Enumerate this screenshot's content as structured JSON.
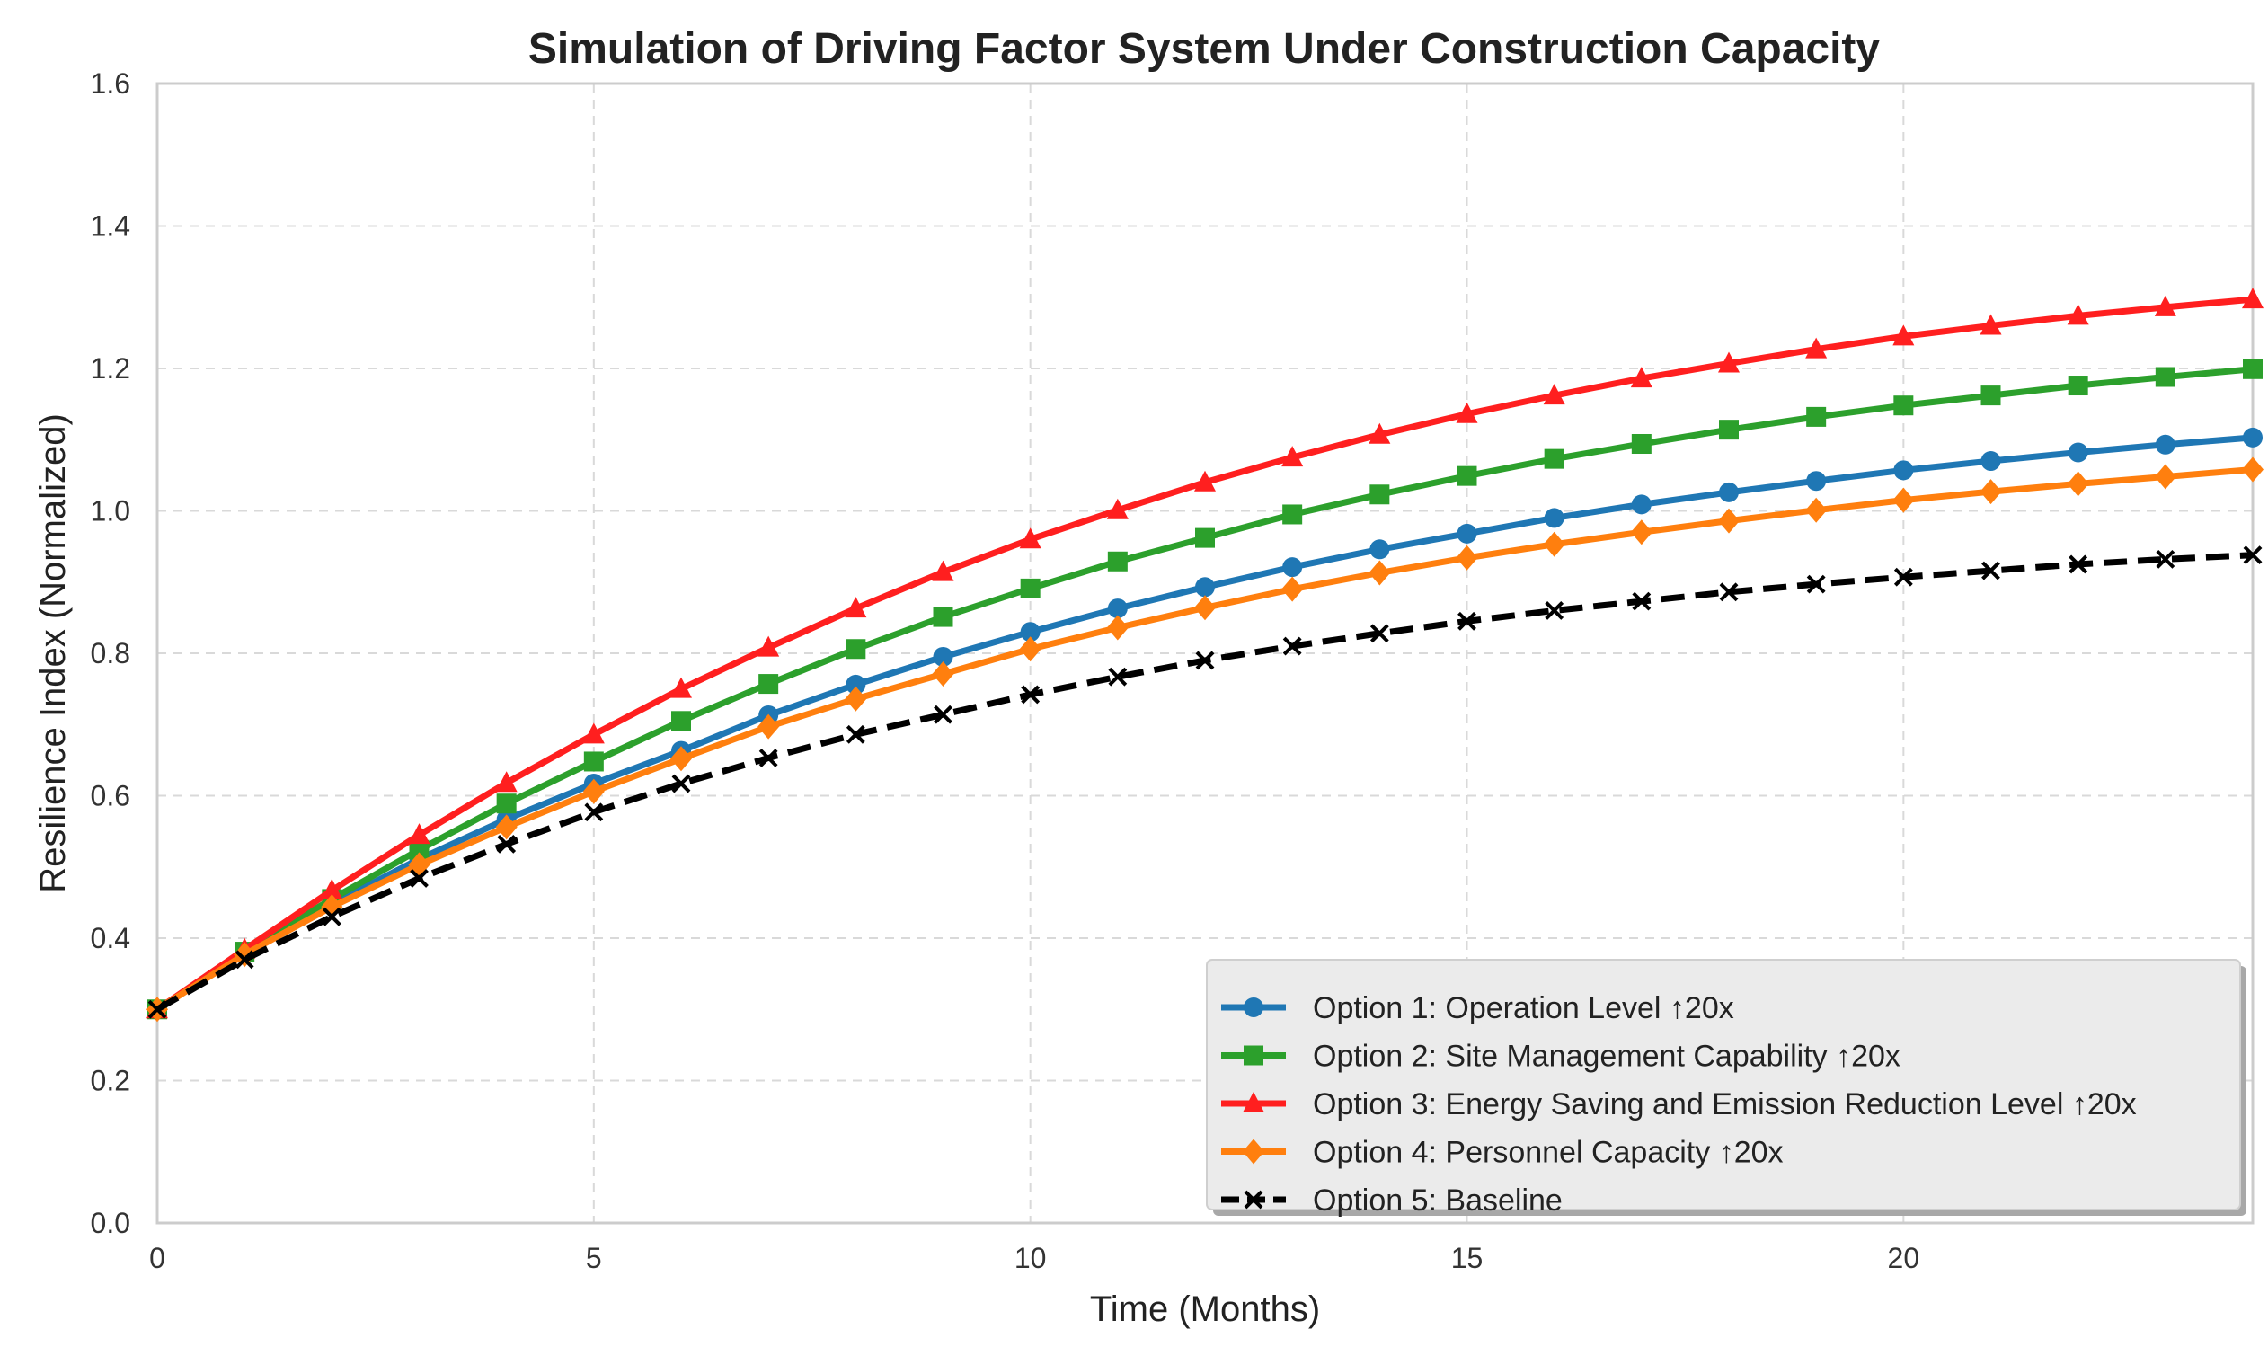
{
  "chart_data": {
    "type": "line",
    "title": "Simulation of Driving Factor System Under Construction Capacity",
    "xlabel": "Time (Months)",
    "ylabel": "Resilience Index (Normalized)",
    "xlim": [
      0,
      24
    ],
    "ylim": [
      0.0,
      1.6
    ],
    "xticks": [
      0,
      5,
      10,
      15,
      20
    ],
    "xtick_labels": [
      "0",
      "5",
      "10",
      "15",
      "20"
    ],
    "yticks": [
      0.0,
      0.2,
      0.4,
      0.6,
      0.8,
      1.0,
      1.2,
      1.4,
      1.6
    ],
    "ytick_labels": [
      "0.0",
      "0.2",
      "0.4",
      "0.6",
      "0.8",
      "1.0",
      "1.2",
      "1.4",
      "1.6"
    ],
    "grid": true,
    "legend_position": "bottom-right",
    "x": [
      0,
      1,
      2,
      3,
      4,
      5,
      6,
      7,
      8,
      9,
      10,
      11,
      12,
      13,
      14,
      15,
      16,
      17,
      18,
      19,
      20,
      21,
      22,
      23,
      24
    ],
    "series": [
      {
        "name": "Option 1: Operation Level ↑20x",
        "color": "#1f77b4",
        "marker": "circle",
        "linestyle": "solid",
        "values": [
          0.3,
          0.379,
          0.448,
          0.511,
          0.567,
          0.617,
          0.663,
          0.713,
          0.756,
          0.795,
          0.83,
          0.863,
          0.893,
          0.921,
          0.946,
          0.968,
          0.99,
          1.009,
          1.026,
          1.042,
          1.057,
          1.07,
          1.082,
          1.093,
          1.103
        ]
      },
      {
        "name": "Option 2: Site Management Capability ↑20x",
        "color": "#2ca02c",
        "marker": "square",
        "linestyle": "solid",
        "values": [
          0.3,
          0.381,
          0.455,
          0.524,
          0.589,
          0.648,
          0.705,
          0.757,
          0.806,
          0.851,
          0.891,
          0.929,
          0.962,
          0.995,
          1.023,
          1.049,
          1.073,
          1.094,
          1.114,
          1.132,
          1.148,
          1.162,
          1.176,
          1.188,
          1.199
        ]
      },
      {
        "name": "Option 3: Energy Saving and Emission Reduction Level ↑20x",
        "color": "#ff1f1f",
        "marker": "triangle",
        "linestyle": "solid",
        "values": [
          0.3,
          0.384,
          0.467,
          0.545,
          0.618,
          0.686,
          0.75,
          0.808,
          0.863,
          0.914,
          0.96,
          1.001,
          1.04,
          1.075,
          1.107,
          1.136,
          1.162,
          1.186,
          1.207,
          1.227,
          1.245,
          1.26,
          1.274,
          1.286,
          1.297
        ]
      },
      {
        "name": "Option 4: Personnel Capacity ↑20x",
        "color": "#ff7f0e",
        "marker": "diamond",
        "linestyle": "solid",
        "values": [
          0.3,
          0.377,
          0.444,
          0.503,
          0.556,
          0.606,
          0.652,
          0.697,
          0.736,
          0.771,
          0.806,
          0.836,
          0.864,
          0.89,
          0.913,
          0.934,
          0.953,
          0.97,
          0.986,
          1.001,
          1.015,
          1.027,
          1.038,
          1.048,
          1.058
        ]
      },
      {
        "name": "Option 5: Baseline",
        "color": "#000000",
        "marker": "x",
        "linestyle": "dashed",
        "values": [
          0.3,
          0.37,
          0.43,
          0.484,
          0.532,
          0.577,
          0.617,
          0.653,
          0.686,
          0.714,
          0.742,
          0.767,
          0.79,
          0.81,
          0.828,
          0.845,
          0.86,
          0.873,
          0.886,
          0.897,
          0.907,
          0.916,
          0.925,
          0.932,
          0.938
        ]
      }
    ]
  }
}
